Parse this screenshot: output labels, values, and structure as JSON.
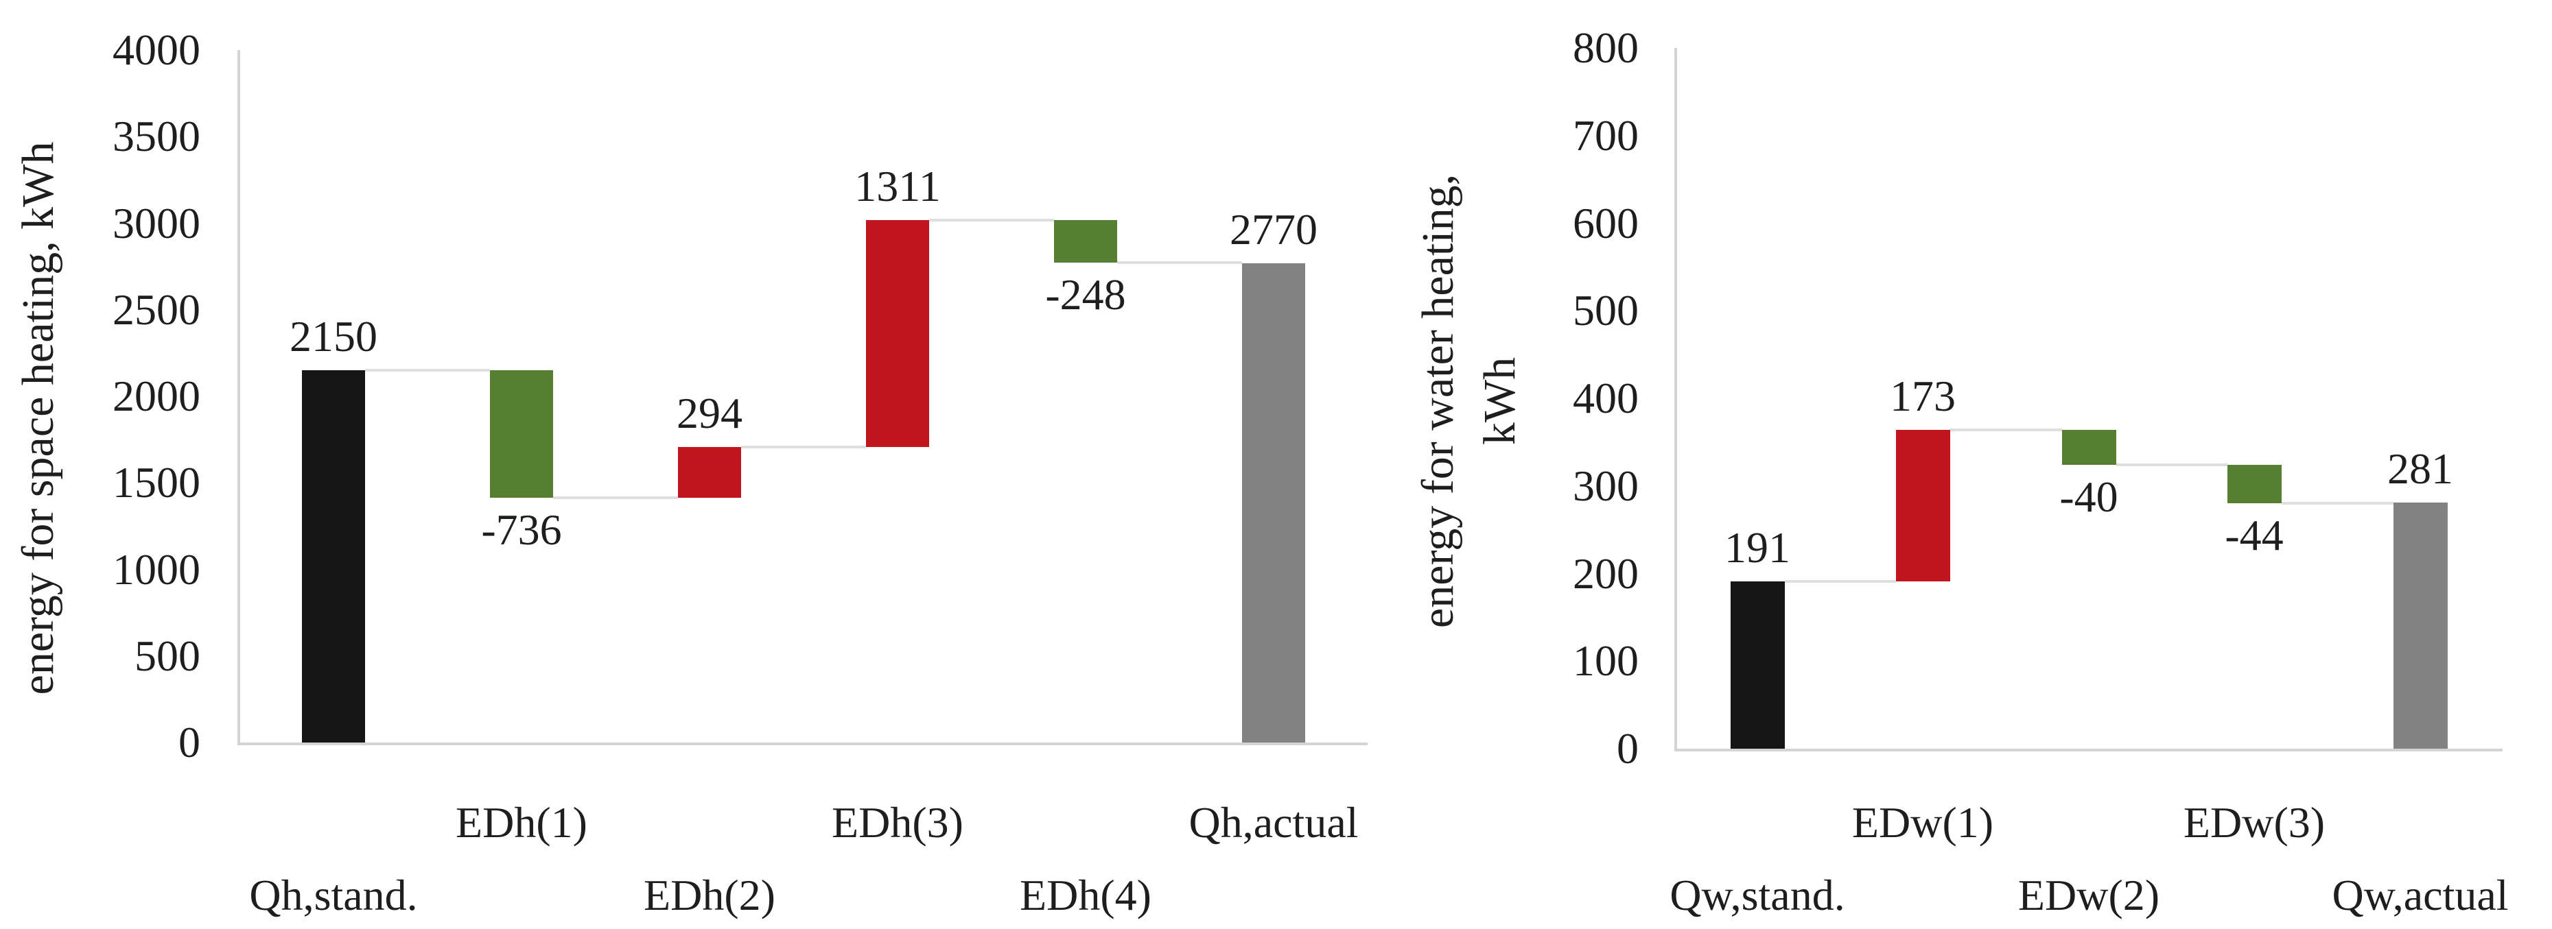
{
  "figure": {
    "background": "#ffffff",
    "text_color": "#1e1e1e",
    "connector_color": "#dedede",
    "axis_color": "#d4d4d4"
  },
  "chart_data": [
    {
      "type": "waterfall",
      "title": "",
      "ylabel": "energy for space heating, kWh",
      "ylabel_lines": [
        "energy for space heating, kWh"
      ],
      "xlabel": "",
      "ylim": [
        0,
        4000
      ],
      "ytick_step": 500,
      "ytick_labels": [
        "0",
        "500",
        "1000",
        "1500",
        "2000",
        "2500",
        "3000",
        "3500",
        "4000"
      ],
      "grid": false,
      "legend": null,
      "categories": [
        "Qh,stand.",
        "EDh(1)",
        "EDh(2)",
        "EDh(3)",
        "EDh(4)",
        "Qh,actual"
      ],
      "values": [
        2150,
        -736,
        294,
        1311,
        -248,
        2770
      ],
      "bar_roles": [
        "start",
        "delta",
        "delta",
        "delta",
        "delta",
        "end"
      ],
      "bar_labels": [
        "2150",
        "-736",
        "294",
        "1311",
        "-248",
        "2770"
      ],
      "running_levels": [
        2150,
        1414,
        1708,
        3019,
        2771,
        2770
      ],
      "colors": {
        "start": "#151515",
        "increase": "#c1151d",
        "decrease": "#567f32",
        "end": "#828282"
      }
    },
    {
      "type": "waterfall",
      "title": "",
      "ylabel": "energy for water heating, kWh",
      "ylabel_lines": [
        "energy for water heating,",
        "kWh"
      ],
      "xlabel": "",
      "ylim": [
        0,
        800
      ],
      "ytick_step": 100,
      "ytick_labels": [
        "0",
        "100",
        "200",
        "300",
        "400",
        "500",
        "600",
        "700",
        "800"
      ],
      "grid": false,
      "legend": null,
      "categories": [
        "Qw,stand.",
        "EDw(1)",
        "EDw(2)",
        "EDw(3)",
        "Qw,actual"
      ],
      "values": [
        191,
        173,
        -40,
        -44,
        281
      ],
      "bar_roles": [
        "start",
        "delta",
        "delta",
        "delta",
        "end"
      ],
      "bar_labels": [
        "191",
        "173",
        "-40",
        "-44",
        "281"
      ],
      "running_levels": [
        191,
        364,
        324,
        280,
        281
      ],
      "colors": {
        "start": "#151515",
        "increase": "#c1151d",
        "decrease": "#567f32",
        "end": "#828282"
      }
    }
  ]
}
